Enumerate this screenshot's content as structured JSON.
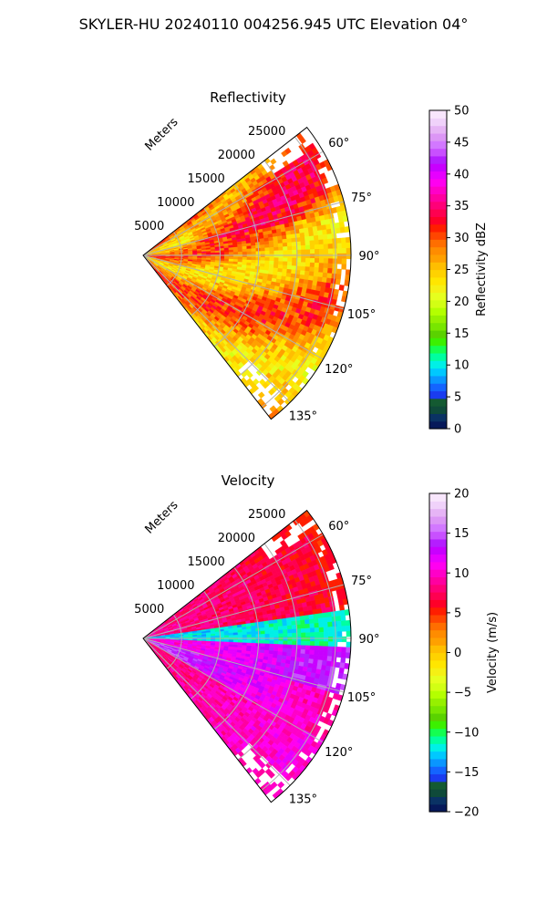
{
  "figure": {
    "suptitle": "SKYLER-HU  20240110  004256.945 UTC Elevation 04°"
  },
  "chart_data": [
    {
      "type": "heatmap",
      "subtype": "polar-sector",
      "title": "Reflectivity",
      "radial_axis_label": "Meters",
      "radial_ticks": [
        "5000",
        "10000",
        "15000",
        "20000",
        "25000"
      ],
      "radial_tick_values": [
        5000,
        10000,
        15000,
        20000,
        25000
      ],
      "radial_max": 27000,
      "angle_ticks": [
        "60°",
        "75°",
        "90°",
        "105°",
        "120°",
        "135°"
      ],
      "angle_tick_values": [
        60,
        75,
        90,
        105,
        120,
        135
      ],
      "angle_range": [
        52,
        142
      ],
      "grid": true,
      "colorbar": {
        "label": "Reflectivity dBZ",
        "range": [
          0,
          50
        ],
        "ticks": [
          "0",
          "5",
          "10",
          "15",
          "20",
          "25",
          "30",
          "35",
          "40",
          "45",
          "50"
        ],
        "colors": [
          "#06195a",
          "#0a3264",
          "#0f4a3a",
          "#145a32",
          "#1a3cf0",
          "#1464ff",
          "#0a96ff",
          "#00c8ff",
          "#00f0e6",
          "#00ffa0",
          "#14ff50",
          "#3cf000",
          "#5ad200",
          "#78e600",
          "#96f000",
          "#b4ff00",
          "#d2ff14",
          "#e6ff1e",
          "#f5f014",
          "#ffe600",
          "#ffd200",
          "#ffbe00",
          "#ffa000",
          "#ff8c00",
          "#ff6e00",
          "#ff4600",
          "#ff1e00",
          "#ff0028",
          "#ff0050",
          "#ff0078",
          "#ff00a0",
          "#ff00c8",
          "#ff00f0",
          "#e600ff",
          "#c800ff",
          "#b41eff",
          "#c850ff",
          "#d278ff",
          "#dc96f5",
          "#e6b4f5",
          "#f0d2fa",
          "#f8e6fc"
        ]
      }
    },
    {
      "type": "heatmap",
      "subtype": "polar-sector",
      "title": "Velocity",
      "radial_axis_label": "Meters",
      "radial_ticks": [
        "5000",
        "10000",
        "15000",
        "20000",
        "25000"
      ],
      "radial_tick_values": [
        5000,
        10000,
        15000,
        20000,
        25000
      ],
      "radial_max": 27000,
      "angle_ticks": [
        "60°",
        "75°",
        "90°",
        "105°",
        "120°",
        "135°"
      ],
      "angle_tick_values": [
        60,
        75,
        90,
        105,
        120,
        135
      ],
      "angle_range": [
        52,
        142
      ],
      "grid": true,
      "colorbar": {
        "label": "Velocity (m/s)",
        "range": [
          -20,
          20
        ],
        "ticks": [
          "−20",
          "−15",
          "−10",
          "−5",
          "0",
          "5",
          "10",
          "15",
          "20"
        ],
        "colors": [
          "#06195a",
          "#0a3264",
          "#0f4a3a",
          "#145a32",
          "#1a3cf0",
          "#1464ff",
          "#0a96ff",
          "#00c8ff",
          "#00f0e6",
          "#00ffa0",
          "#14ff50",
          "#3cf000",
          "#5ad200",
          "#78e600",
          "#96f000",
          "#b4ff00",
          "#d2ff14",
          "#e6ff1e",
          "#f5f014",
          "#ffe600",
          "#ffd200",
          "#ffbe00",
          "#ffa000",
          "#ff8c00",
          "#ff6e00",
          "#ff4600",
          "#ff1e00",
          "#ff0028",
          "#ff0050",
          "#ff0078",
          "#ff00a0",
          "#ff00c8",
          "#ff00f0",
          "#e600ff",
          "#c800ff",
          "#b41eff",
          "#c850ff",
          "#d278ff",
          "#dc96f5",
          "#e6b4f5",
          "#f0d2fa",
          "#f8e6fc"
        ]
      }
    }
  ]
}
